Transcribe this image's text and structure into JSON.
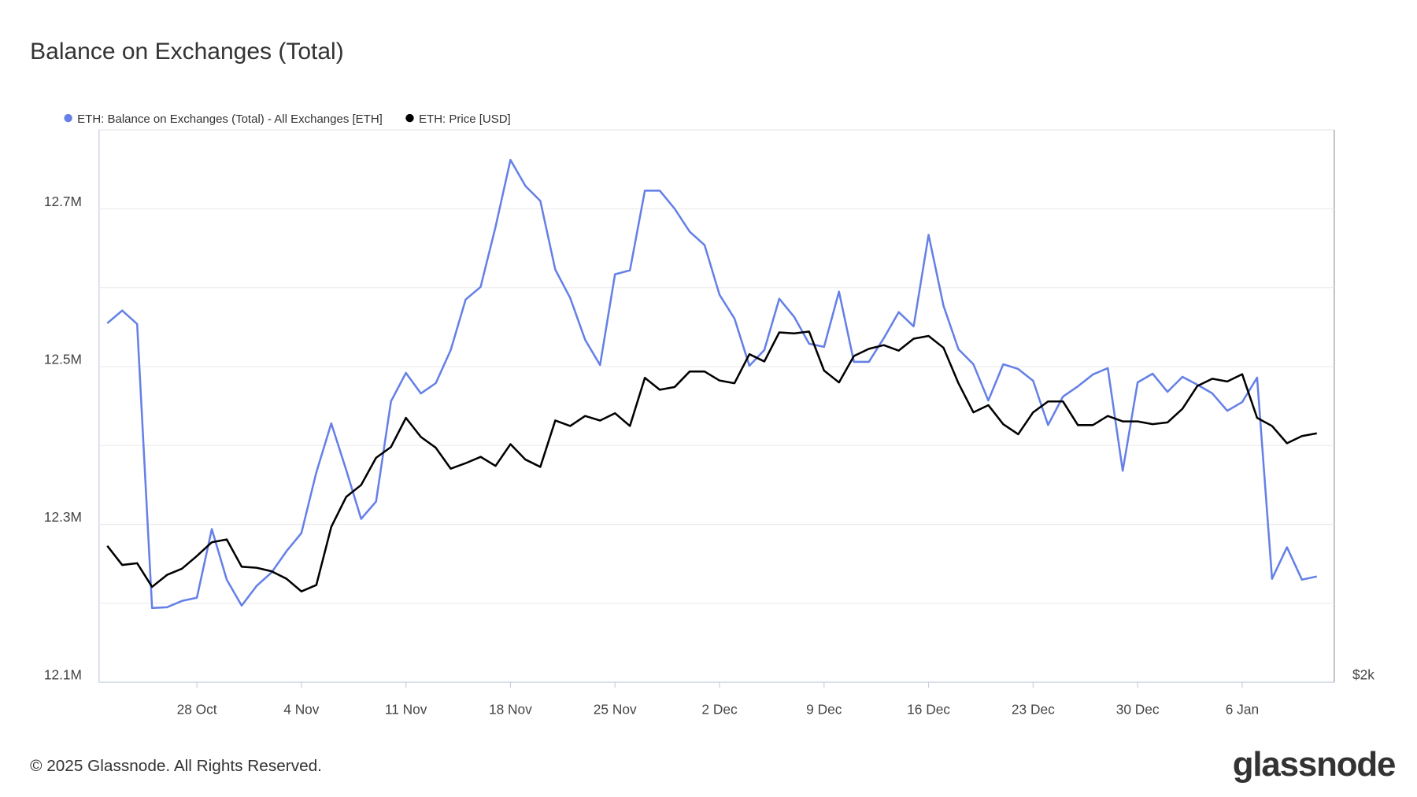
{
  "chart_data": {
    "type": "line",
    "title": "Balance on Exchanges (Total)",
    "x": [
      "22 Oct",
      "23 Oct",
      "24 Oct",
      "25 Oct",
      "26 Oct",
      "27 Oct",
      "28 Oct",
      "29 Oct",
      "30 Oct",
      "31 Oct",
      "1 Nov",
      "2 Nov",
      "3 Nov",
      "4 Nov",
      "5 Nov",
      "6 Nov",
      "7 Nov",
      "8 Nov",
      "9 Nov",
      "10 Nov",
      "11 Nov",
      "12 Nov",
      "13 Nov",
      "14 Nov",
      "15 Nov",
      "16 Nov",
      "17 Nov",
      "18 Nov",
      "19 Nov",
      "20 Nov",
      "21 Nov",
      "22 Nov",
      "23 Nov",
      "24 Nov",
      "25 Nov",
      "26 Nov",
      "27 Nov",
      "28 Nov",
      "29 Nov",
      "30 Nov",
      "1 Dec",
      "2 Dec",
      "3 Dec",
      "4 Dec",
      "5 Dec",
      "6 Dec",
      "7 Dec",
      "8 Dec",
      "9 Dec",
      "10 Dec",
      "11 Dec",
      "12 Dec",
      "13 Dec",
      "14 Dec",
      "15 Dec",
      "16 Dec",
      "17 Dec",
      "18 Dec",
      "19 Dec",
      "20 Dec",
      "21 Dec",
      "22 Dec",
      "23 Dec",
      "24 Dec",
      "25 Dec",
      "26 Dec",
      "27 Dec",
      "28 Dec",
      "29 Dec",
      "30 Dec",
      "31 Dec",
      "1 Jan",
      "2 Jan",
      "3 Jan",
      "4 Jan",
      "5 Jan",
      "6 Jan",
      "7 Jan",
      "8 Jan",
      "9 Jan",
      "10 Jan",
      "11 Jan"
    ],
    "series": [
      {
        "name": "ETH: Balance on Exchanges (Total) - All Exchanges [ETH]",
        "color": "#6580e6",
        "axis": "y",
        "values": [
          12555000,
          12571000,
          12554000,
          12194000,
          12195000,
          12203000,
          12207000,
          12294000,
          12230000,
          12197000,
          12222000,
          12239000,
          12266000,
          12289000,
          12366000,
          12428000,
          12369000,
          12307000,
          12329000,
          12456000,
          12492000,
          12466000,
          12479000,
          12521000,
          12585000,
          12601000,
          12677000,
          12762000,
          12729000,
          12710000,
          12623000,
          12587000,
          12534000,
          12502000,
          12617000,
          12622000,
          12723000,
          12723000,
          12700000,
          12671000,
          12654000,
          12591000,
          12561000,
          12501000,
          12521000,
          12586000,
          12563000,
          12529000,
          12525000,
          12595000,
          12506000,
          12506000,
          12536000,
          12569000,
          12551000,
          12667000,
          12577000,
          12522000,
          12503000,
          12457000,
          12503000,
          12497000,
          12482000,
          12426000,
          12462000,
          12475000,
          12490000,
          12498000,
          12368000,
          12480000,
          12491000,
          12468000,
          12487000,
          12477000,
          12466000,
          12444000,
          12455000,
          12486000,
          12231000,
          12271000,
          12230000,
          12234000
        ]
      },
      {
        "name": "ETH: Price [USD]",
        "color": "#000000",
        "axis": "y2",
        "values": [
          2630,
          2531,
          2540,
          2422,
          2481,
          2512,
          2577,
          2649,
          2664,
          2522,
          2517,
          2499,
          2462,
          2400,
          2431,
          2732,
          2902,
          2972,
          3139,
          3208,
          3401,
          3273,
          3203,
          3071,
          3105,
          3145,
          3088,
          3226,
          3128,
          3082,
          3383,
          3346,
          3414,
          3383,
          3433,
          3346,
          3686,
          3599,
          3619,
          3733,
          3733,
          3666,
          3646,
          3865,
          3809,
          4038,
          4030,
          4045,
          3740,
          3652,
          3851,
          3907,
          3936,
          3893,
          3987,
          4009,
          3915,
          3646,
          3439,
          3489,
          3358,
          3291,
          3439,
          3515,
          3515,
          3352,
          3352,
          3414,
          3377,
          3377,
          3358,
          3370,
          3464,
          3626,
          3679,
          3659,
          3713,
          3401,
          3346,
          3232,
          3279,
          3297
        ]
      }
    ],
    "xticks": [
      "28 Oct",
      "4 Nov",
      "11 Nov",
      "18 Nov",
      "25 Nov",
      "2 Dec",
      "9 Dec",
      "16 Dec",
      "23 Dec",
      "30 Dec",
      "6 Jan"
    ],
    "ylim": [
      12100000,
      12800000
    ],
    "yticks": [
      {
        "value": 12100000,
        "label": "12.1M"
      },
      {
        "value": 12300000,
        "label": "12.3M"
      },
      {
        "value": 12500000,
        "label": "12.5M"
      },
      {
        "value": 12700000,
        "label": "12.7M"
      }
    ],
    "minor_yticks": [
      12200000,
      12400000,
      12600000
    ],
    "y2lim": [
      2000,
      6065
    ],
    "y2_log": true,
    "y2ticks": [
      {
        "value": 2000,
        "label": "$2k"
      }
    ],
    "grid": true,
    "legend": "top-left"
  },
  "footer": {
    "copyright": "© 2025 Glassnode. All Rights Reserved.",
    "logo": "glassnode"
  }
}
